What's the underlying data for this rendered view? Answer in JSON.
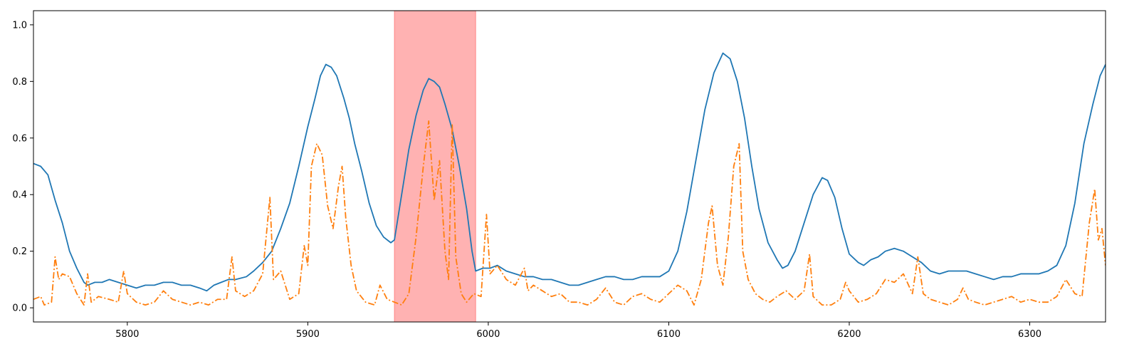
{
  "chart_data": {
    "type": "line",
    "title": "",
    "xlabel": "",
    "ylabel": "",
    "xlim": [
      5748,
      6342
    ],
    "ylim": [
      -0.05,
      1.05
    ],
    "x_ticks": [
      5800,
      5900,
      6000,
      6100,
      6200,
      6300
    ],
    "y_ticks": [
      0.0,
      0.2,
      0.4,
      0.6,
      0.8,
      1.0
    ],
    "x_tick_labels": [
      "5800",
      "5900",
      "6000",
      "6100",
      "6200",
      "6300"
    ],
    "y_tick_labels": [
      "0.0",
      "0.2",
      "0.4",
      "0.6",
      "0.8",
      "1.0"
    ],
    "grid": false,
    "legend": "none",
    "highlight_span": {
      "x0": 5948,
      "x1": 5993,
      "color": "#ff6666",
      "opacity": 0.5
    },
    "series": [
      {
        "style": "solid",
        "color": "#1f77b4",
        "points": [
          [
            5748,
            0.51
          ],
          [
            5752,
            0.5
          ],
          [
            5756,
            0.47
          ],
          [
            5760,
            0.38
          ],
          [
            5764,
            0.3
          ],
          [
            5768,
            0.2
          ],
          [
            5772,
            0.14
          ],
          [
            5776,
            0.09
          ],
          [
            5778,
            0.08
          ],
          [
            5782,
            0.09
          ],
          [
            5786,
            0.09
          ],
          [
            5790,
            0.1
          ],
          [
            5795,
            0.09
          ],
          [
            5800,
            0.08
          ],
          [
            5805,
            0.07
          ],
          [
            5810,
            0.08
          ],
          [
            5815,
            0.08
          ],
          [
            5820,
            0.09
          ],
          [
            5825,
            0.09
          ],
          [
            5830,
            0.08
          ],
          [
            5835,
            0.08
          ],
          [
            5840,
            0.07
          ],
          [
            5844,
            0.06
          ],
          [
            5848,
            0.08
          ],
          [
            5852,
            0.09
          ],
          [
            5856,
            0.1
          ],
          [
            5860,
            0.1
          ],
          [
            5866,
            0.11
          ],
          [
            5870,
            0.13
          ],
          [
            5875,
            0.16
          ],
          [
            5880,
            0.2
          ],
          [
            5885,
            0.28
          ],
          [
            5890,
            0.37
          ],
          [
            5895,
            0.5
          ],
          [
            5900,
            0.64
          ],
          [
            5904,
            0.74
          ],
          [
            5907,
            0.82
          ],
          [
            5910,
            0.86
          ],
          [
            5913,
            0.85
          ],
          [
            5916,
            0.82
          ],
          [
            5920,
            0.74
          ],
          [
            5923,
            0.67
          ],
          [
            5926,
            0.58
          ],
          [
            5930,
            0.48
          ],
          [
            5934,
            0.37
          ],
          [
            5938,
            0.29
          ],
          [
            5942,
            0.25
          ],
          [
            5946,
            0.23
          ],
          [
            5948,
            0.24
          ],
          [
            5952,
            0.4
          ],
          [
            5956,
            0.56
          ],
          [
            5960,
            0.68
          ],
          [
            5964,
            0.77
          ],
          [
            5967,
            0.81
          ],
          [
            5970,
            0.8
          ],
          [
            5973,
            0.78
          ],
          [
            5976,
            0.72
          ],
          [
            5980,
            0.63
          ],
          [
            5984,
            0.5
          ],
          [
            5988,
            0.35
          ],
          [
            5991,
            0.2
          ],
          [
            5993,
            0.13
          ],
          [
            5997,
            0.14
          ],
          [
            6001,
            0.14
          ],
          [
            6005,
            0.15
          ],
          [
            6010,
            0.13
          ],
          [
            6015,
            0.12
          ],
          [
            6020,
            0.11
          ],
          [
            6025,
            0.11
          ],
          [
            6030,
            0.1
          ],
          [
            6035,
            0.1
          ],
          [
            6040,
            0.09
          ],
          [
            6045,
            0.08
          ],
          [
            6050,
            0.08
          ],
          [
            6055,
            0.09
          ],
          [
            6060,
            0.1
          ],
          [
            6065,
            0.11
          ],
          [
            6070,
            0.11
          ],
          [
            6075,
            0.1
          ],
          [
            6080,
            0.1
          ],
          [
            6085,
            0.11
          ],
          [
            6090,
            0.11
          ],
          [
            6095,
            0.11
          ],
          [
            6100,
            0.13
          ],
          [
            6105,
            0.2
          ],
          [
            6110,
            0.34
          ],
          [
            6115,
            0.52
          ],
          [
            6120,
            0.7
          ],
          [
            6125,
            0.83
          ],
          [
            6130,
            0.9
          ],
          [
            6134,
            0.88
          ],
          [
            6138,
            0.8
          ],
          [
            6142,
            0.67
          ],
          [
            6146,
            0.5
          ],
          [
            6150,
            0.35
          ],
          [
            6155,
            0.23
          ],
          [
            6160,
            0.17
          ],
          [
            6163,
            0.14
          ],
          [
            6166,
            0.15
          ],
          [
            6170,
            0.2
          ],
          [
            6175,
            0.3
          ],
          [
            6180,
            0.4
          ],
          [
            6185,
            0.46
          ],
          [
            6188,
            0.45
          ],
          [
            6192,
            0.39
          ],
          [
            6196,
            0.28
          ],
          [
            6200,
            0.19
          ],
          [
            6205,
            0.16
          ],
          [
            6208,
            0.15
          ],
          [
            6212,
            0.17
          ],
          [
            6216,
            0.18
          ],
          [
            6220,
            0.2
          ],
          [
            6225,
            0.21
          ],
          [
            6230,
            0.2
          ],
          [
            6235,
            0.18
          ],
          [
            6240,
            0.16
          ],
          [
            6245,
            0.13
          ],
          [
            6250,
            0.12
          ],
          [
            6255,
            0.13
          ],
          [
            6260,
            0.13
          ],
          [
            6265,
            0.13
          ],
          [
            6270,
            0.12
          ],
          [
            6275,
            0.11
          ],
          [
            6280,
            0.1
          ],
          [
            6285,
            0.11
          ],
          [
            6290,
            0.11
          ],
          [
            6295,
            0.12
          ],
          [
            6300,
            0.12
          ],
          [
            6305,
            0.12
          ],
          [
            6310,
            0.13
          ],
          [
            6315,
            0.15
          ],
          [
            6320,
            0.22
          ],
          [
            6325,
            0.37
          ],
          [
            6330,
            0.58
          ],
          [
            6335,
            0.72
          ],
          [
            6339,
            0.82
          ],
          [
            6342,
            0.86
          ]
        ]
      },
      {
        "style": "dashdot",
        "color": "#ff7f0e",
        "points": [
          [
            5748,
            0.03
          ],
          [
            5752,
            0.04
          ],
          [
            5754,
            0.01
          ],
          [
            5758,
            0.02
          ],
          [
            5760,
            0.18
          ],
          [
            5762,
            0.1
          ],
          [
            5764,
            0.12
          ],
          [
            5768,
            0.11
          ],
          [
            5772,
            0.05
          ],
          [
            5776,
            0.01
          ],
          [
            5778,
            0.12
          ],
          [
            5780,
            0.02
          ],
          [
            5784,
            0.04
          ],
          [
            5790,
            0.03
          ],
          [
            5795,
            0.02
          ],
          [
            5798,
            0.13
          ],
          [
            5800,
            0.05
          ],
          [
            5805,
            0.02
          ],
          [
            5810,
            0.01
          ],
          [
            5815,
            0.02
          ],
          [
            5820,
            0.06
          ],
          [
            5825,
            0.03
          ],
          [
            5830,
            0.02
          ],
          [
            5835,
            0.01
          ],
          [
            5840,
            0.02
          ],
          [
            5845,
            0.01
          ],
          [
            5850,
            0.03
          ],
          [
            5855,
            0.03
          ],
          [
            5858,
            0.18
          ],
          [
            5860,
            0.06
          ],
          [
            5865,
            0.04
          ],
          [
            5870,
            0.06
          ],
          [
            5875,
            0.12
          ],
          [
            5879,
            0.39
          ],
          [
            5881,
            0.1
          ],
          [
            5885,
            0.13
          ],
          [
            5890,
            0.03
          ],
          [
            5895,
            0.05
          ],
          [
            5898,
            0.22
          ],
          [
            5900,
            0.15
          ],
          [
            5902,
            0.5
          ],
          [
            5905,
            0.58
          ],
          [
            5908,
            0.54
          ],
          [
            5911,
            0.36
          ],
          [
            5914,
            0.28
          ],
          [
            5917,
            0.43
          ],
          [
            5919,
            0.5
          ],
          [
            5921,
            0.32
          ],
          [
            5924,
            0.15
          ],
          [
            5927,
            0.06
          ],
          [
            5932,
            0.02
          ],
          [
            5937,
            0.01
          ],
          [
            5940,
            0.08
          ],
          [
            5944,
            0.03
          ],
          [
            5948,
            0.02
          ],
          [
            5952,
            0.01
          ],
          [
            5956,
            0.05
          ],
          [
            5960,
            0.25
          ],
          [
            5964,
            0.5
          ],
          [
            5967,
            0.66
          ],
          [
            5970,
            0.38
          ],
          [
            5973,
            0.52
          ],
          [
            5976,
            0.2
          ],
          [
            5978,
            0.1
          ],
          [
            5980,
            0.65
          ],
          [
            5982,
            0.18
          ],
          [
            5985,
            0.05
          ],
          [
            5988,
            0.02
          ],
          [
            5992,
            0.05
          ],
          [
            5996,
            0.04
          ],
          [
            5999,
            0.33
          ],
          [
            6001,
            0.12
          ],
          [
            6005,
            0.15
          ],
          [
            6010,
            0.1
          ],
          [
            6015,
            0.08
          ],
          [
            6020,
            0.14
          ],
          [
            6022,
            0.06
          ],
          [
            6025,
            0.08
          ],
          [
            6030,
            0.06
          ],
          [
            6035,
            0.04
          ],
          [
            6040,
            0.05
          ],
          [
            6045,
            0.02
          ],
          [
            6050,
            0.02
          ],
          [
            6055,
            0.01
          ],
          [
            6060,
            0.03
          ],
          [
            6065,
            0.07
          ],
          [
            6070,
            0.02
          ],
          [
            6075,
            0.01
          ],
          [
            6080,
            0.04
          ],
          [
            6085,
            0.05
          ],
          [
            6090,
            0.03
          ],
          [
            6095,
            0.02
          ],
          [
            6100,
            0.05
          ],
          [
            6105,
            0.08
          ],
          [
            6110,
            0.06
          ],
          [
            6114,
            0.01
          ],
          [
            6118,
            0.1
          ],
          [
            6122,
            0.3
          ],
          [
            6124,
            0.36
          ],
          [
            6127,
            0.15
          ],
          [
            6130,
            0.08
          ],
          [
            6133,
            0.25
          ],
          [
            6136,
            0.5
          ],
          [
            6139,
            0.58
          ],
          [
            6141,
            0.2
          ],
          [
            6144,
            0.1
          ],
          [
            6148,
            0.05
          ],
          [
            6152,
            0.03
          ],
          [
            6156,
            0.02
          ],
          [
            6160,
            0.04
          ],
          [
            6165,
            0.06
          ],
          [
            6170,
            0.03
          ],
          [
            6175,
            0.06
          ],
          [
            6178,
            0.19
          ],
          [
            6180,
            0.04
          ],
          [
            6185,
            0.01
          ],
          [
            6190,
            0.01
          ],
          [
            6195,
            0.03
          ],
          [
            6198,
            0.09
          ],
          [
            6200,
            0.06
          ],
          [
            6205,
            0.02
          ],
          [
            6210,
            0.03
          ],
          [
            6215,
            0.05
          ],
          [
            6220,
            0.1
          ],
          [
            6225,
            0.09
          ],
          [
            6230,
            0.12
          ],
          [
            6235,
            0.05
          ],
          [
            6238,
            0.18
          ],
          [
            6241,
            0.05
          ],
          [
            6245,
            0.03
          ],
          [
            6250,
            0.02
          ],
          [
            6255,
            0.01
          ],
          [
            6260,
            0.03
          ],
          [
            6263,
            0.07
          ],
          [
            6266,
            0.03
          ],
          [
            6270,
            0.02
          ],
          [
            6275,
            0.01
          ],
          [
            6280,
            0.02
          ],
          [
            6285,
            0.03
          ],
          [
            6290,
            0.04
          ],
          [
            6295,
            0.02
          ],
          [
            6300,
            0.03
          ],
          [
            6305,
            0.02
          ],
          [
            6310,
            0.02
          ],
          [
            6315,
            0.04
          ],
          [
            6320,
            0.1
          ],
          [
            6325,
            0.05
          ],
          [
            6329,
            0.04
          ],
          [
            6333,
            0.3
          ],
          [
            6336,
            0.42
          ],
          [
            6338,
            0.24
          ],
          [
            6340,
            0.28
          ],
          [
            6342,
            0.15
          ]
        ]
      }
    ]
  }
}
